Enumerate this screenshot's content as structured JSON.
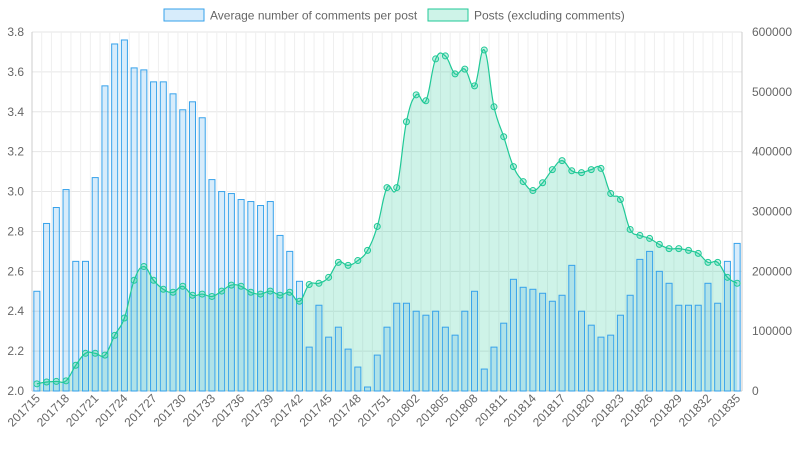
{
  "chart_data": {
    "type": "bar",
    "title": "",
    "x": [
      "201715",
      "201716",
      "201717",
      "201718",
      "201719",
      "201720",
      "201721",
      "201722",
      "201723",
      "201724",
      "201725",
      "201726",
      "201727",
      "201728",
      "201729",
      "201730",
      "201731",
      "201732",
      "201733",
      "201734",
      "201735",
      "201736",
      "201737",
      "201738",
      "201739",
      "201740",
      "201741",
      "201742",
      "201743",
      "201744",
      "201745",
      "201746",
      "201747",
      "201748",
      "201749",
      "201750",
      "201751",
      "201752",
      "201801",
      "201802",
      "201803",
      "201804",
      "201805",
      "201806",
      "201807",
      "201808",
      "201809",
      "201810",
      "201811",
      "201812",
      "201813",
      "201814",
      "201815",
      "201816",
      "201817",
      "201818",
      "201819",
      "201820",
      "201821",
      "201822",
      "201823",
      "201824",
      "201825",
      "201826",
      "201827",
      "201828",
      "201829",
      "201830",
      "201831",
      "201832",
      "201833",
      "201834",
      "201835"
    ],
    "x_tick_labels": [
      "201715",
      "201718",
      "201721",
      "201724",
      "201727",
      "201730",
      "201733",
      "201736",
      "201739",
      "201742",
      "201745",
      "201748",
      "201751",
      "201802",
      "201805",
      "201808",
      "201811",
      "201814",
      "201817",
      "201820",
      "201823",
      "201826",
      "201829",
      "201832",
      "201835"
    ],
    "legend_position": "top",
    "grid": true,
    "series": [
      {
        "name": "Average number of comments per post",
        "type": "bar",
        "axis": "left",
        "color": "#36a2eb",
        "fill": "rgba(54,162,235,0.2)",
        "values": [
          2.5,
          2.84,
          2.92,
          3.01,
          2.65,
          2.65,
          3.07,
          3.53,
          3.74,
          3.76,
          3.62,
          3.61,
          3.55,
          3.55,
          3.49,
          3.41,
          3.45,
          3.37,
          3.06,
          3.0,
          2.99,
          2.96,
          2.95,
          2.93,
          2.95,
          2.78,
          2.7,
          2.55,
          2.22,
          2.43,
          2.27,
          2.32,
          2.21,
          2.12,
          2.02,
          2.18,
          2.32,
          2.44,
          2.44,
          2.4,
          2.38,
          2.4,
          2.32,
          2.28,
          2.4,
          2.5,
          2.11,
          2.22,
          2.34,
          2.56,
          2.52,
          2.51,
          2.49,
          2.45,
          2.48,
          2.63,
          2.4,
          2.33,
          2.27,
          2.28,
          2.38,
          2.48,
          2.66,
          2.7,
          2.6,
          2.54,
          2.43,
          2.43,
          2.43,
          2.54,
          2.44,
          2.65,
          2.74
        ]
      },
      {
        "name": "Posts (excluding comments)",
        "type": "area",
        "axis": "right",
        "color": "#20c997",
        "fill": "rgba(32,201,151,0.22)",
        "values": [
          12000,
          15000,
          16000,
          17000,
          43000,
          63000,
          63000,
          60000,
          93000,
          122000,
          185000,
          208000,
          185000,
          170000,
          165000,
          175000,
          160000,
          162000,
          158000,
          167000,
          177000,
          175000,
          165000,
          162000,
          167000,
          160000,
          165000,
          150000,
          178000,
          180000,
          190000,
          215000,
          210000,
          218000,
          235000,
          275000,
          340000,
          340000,
          450000,
          495000,
          485000,
          555000,
          560000,
          530000,
          538000,
          510000,
          570000,
          475000,
          425000,
          375000,
          350000,
          335000,
          348000,
          370000,
          385000,
          368000,
          365000,
          370000,
          372000,
          330000,
          320000,
          270000,
          260000,
          255000,
          245000,
          238000,
          238000,
          235000,
          230000,
          215000,
          215000,
          190000,
          180000
        ]
      }
    ],
    "y_left": {
      "min": 2.0,
      "max": 3.8,
      "ticks": [
        "2.0",
        "2.2",
        "2.4",
        "2.6",
        "2.8",
        "3.0",
        "3.2",
        "3.4",
        "3.6",
        "3.8"
      ]
    },
    "y_right": {
      "min": 0,
      "max": 600000,
      "ticks": [
        "0",
        "100000",
        "200000",
        "300000",
        "400000",
        "500000",
        "600000"
      ]
    }
  }
}
